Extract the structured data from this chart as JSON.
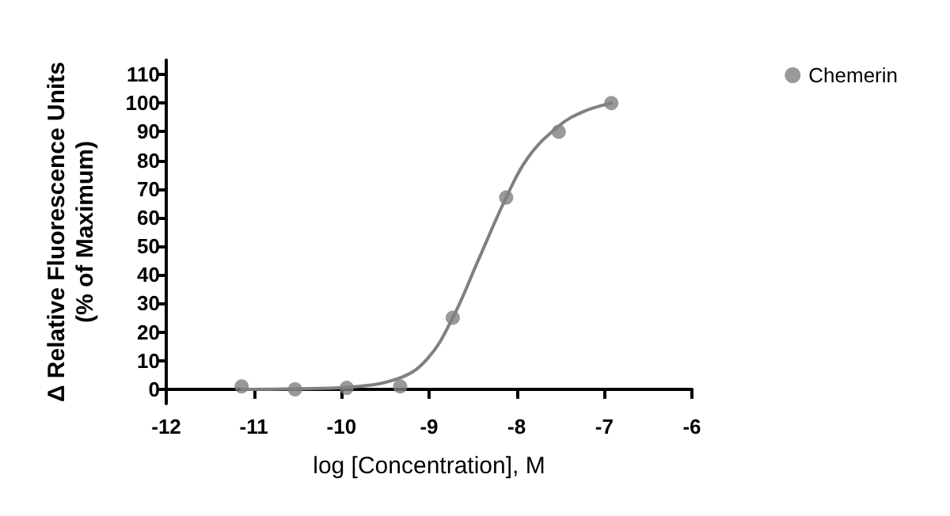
{
  "chart_data": {
    "type": "scatter",
    "xlabel": "log [Concentration], M",
    "ylabel": "Δ Relative Fluorescence Units\n(% of Maximum)",
    "series": [
      {
        "name": "Chemerin",
        "color": "#808080",
        "x": [
          -11.14,
          -10.53,
          -9.94,
          -9.33,
          -8.73,
          -8.12,
          -7.52,
          -6.92
        ],
        "values": [
          1,
          0,
          0.5,
          1,
          25,
          67,
          90,
          100
        ],
        "marker": "circle"
      },
      {
        "type": "line",
        "color": "#808080",
        "x": [
          -11.14,
          -10.53,
          -9.94,
          -9.33,
          -9.01,
          -8.73,
          -8.44,
          -8.12,
          -7.87,
          -7.52,
          -7.24,
          -6.92
        ],
        "values": [
          0,
          0.2,
          0.7,
          4,
          11,
          25,
          45,
          67,
          81,
          92,
          97,
          100
        ],
        "marker": "none",
        "line_style": "solid"
      }
    ],
    "xlim": [
      -12,
      -6
    ],
    "xticks": [
      -12,
      -11,
      -10,
      -9,
      -8,
      -7,
      -6
    ],
    "ylim": [
      -5,
      115
    ],
    "yticks": [
      0,
      10,
      20,
      30,
      40,
      50,
      60,
      70,
      80,
      90,
      100,
      110
    ],
    "grid": false,
    "legend": "top right"
  }
}
